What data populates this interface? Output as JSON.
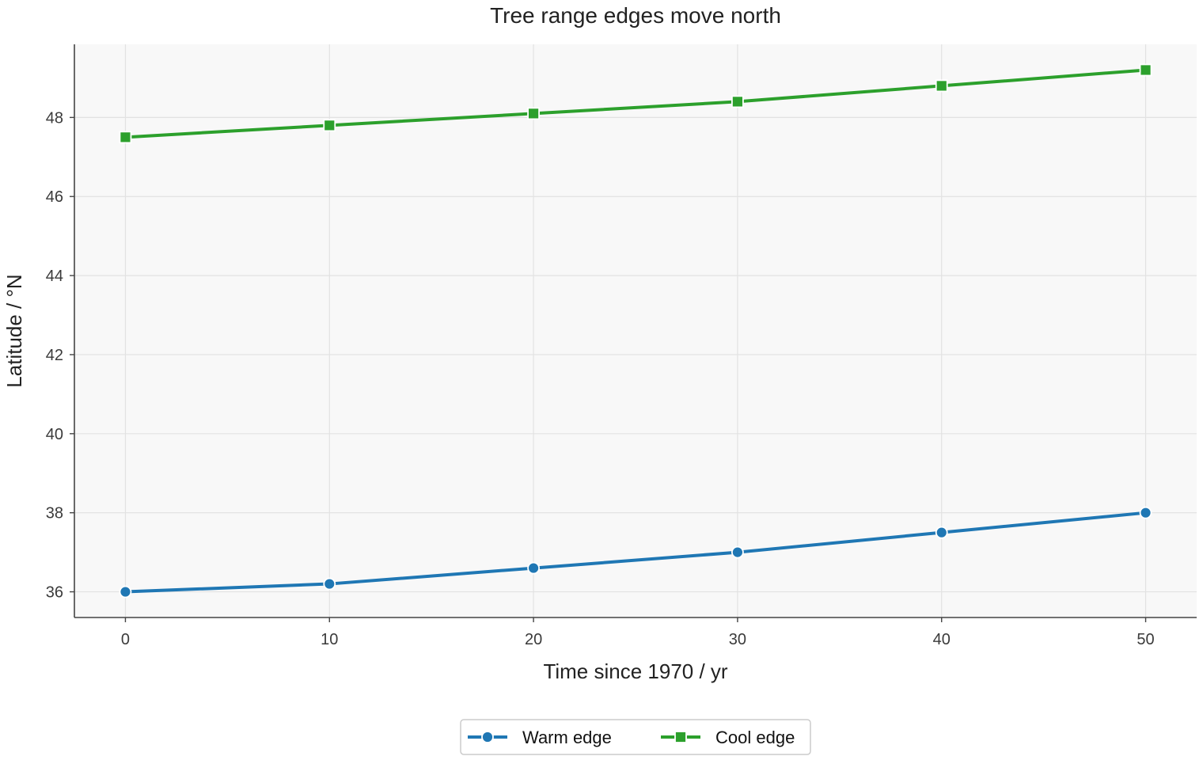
{
  "chart_data": {
    "type": "line",
    "title": "Tree range edges move north",
    "xlabel": "Time since 1970 / yr",
    "ylabel": "Latitude / °N",
    "x": [
      0,
      10,
      20,
      30,
      40,
      50
    ],
    "xlim": [
      -2.5,
      52.5
    ],
    "ylim": [
      35.35,
      49.85
    ],
    "xticks": [
      0,
      10,
      20,
      30,
      40,
      50
    ],
    "yticks": [
      36,
      38,
      40,
      42,
      44,
      46,
      48
    ],
    "xtick_labels": [
      "0",
      "10",
      "20",
      "30",
      "40",
      "50"
    ],
    "ytick_labels": [
      "36",
      "38",
      "40",
      "42",
      "44",
      "46",
      "48"
    ],
    "grid": true,
    "legend_position": "bottom-center",
    "series": [
      {
        "name": "Warm edge",
        "values": [
          36.0,
          36.2,
          36.6,
          37.0,
          37.5,
          38.0
        ],
        "color": "#1f77b4",
        "marker": "circle"
      },
      {
        "name": "Cool edge",
        "values": [
          47.5,
          47.8,
          48.1,
          48.4,
          48.8,
          49.2
        ],
        "color": "#2ca02c",
        "marker": "square"
      }
    ]
  }
}
